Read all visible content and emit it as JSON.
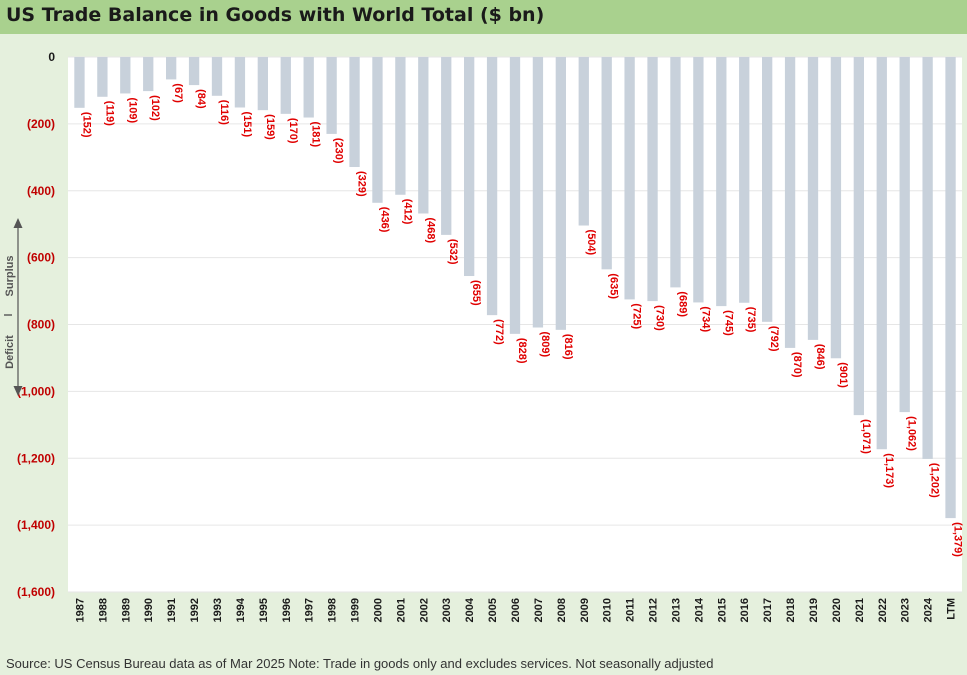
{
  "title": "US Trade Balance in Goods with World Total ($ bn)",
  "footer": "Source: US Census Bureau data as of Mar 2025 Note: Trade in goods only and excludes services. Not seasonally adjusted",
  "indicator": {
    "surplus_label": "Surplus",
    "deficit_label": "Deficit"
  },
  "colors": {
    "bar": "#c8d1db",
    "label_red": "#e00000",
    "grid": "#e6e6e6",
    "title_bg": "#a9d18e",
    "plot_bg": "#ffffff",
    "page_bg": "#e5f0dd"
  },
  "chart_data": {
    "type": "bar",
    "title": "US Trade Balance in Goods with World Total ($ bn)",
    "xlabel": "",
    "ylabel": "",
    "ylim": [
      -1600,
      0
    ],
    "yticks": [
      0,
      -200,
      -400,
      -600,
      -800,
      -1000,
      -1200,
      -1400,
      -1600
    ],
    "ytick_labels": [
      "0",
      "(200)",
      "(400)",
      "(600)",
      "(800)",
      "(1,000)",
      "(1,200)",
      "(1,400)",
      "(1,600)"
    ],
    "grid": true,
    "categories": [
      "1987",
      "1988",
      "1989",
      "1990",
      "1991",
      "1992",
      "1993",
      "1994",
      "1995",
      "1996",
      "1997",
      "1998",
      "1999",
      "2000",
      "2001",
      "2002",
      "2003",
      "2004",
      "2005",
      "2006",
      "2007",
      "2008",
      "2009",
      "2010",
      "2011",
      "2012",
      "2013",
      "2014",
      "2015",
      "2016",
      "2017",
      "2018",
      "2019",
      "2020",
      "2021",
      "2022",
      "2023",
      "2024",
      "LTM"
    ],
    "values": [
      -152,
      -119,
      -109,
      -102,
      -67,
      -84,
      -116,
      -151,
      -159,
      -170,
      -181,
      -230,
      -329,
      -436,
      -412,
      -468,
      -532,
      -655,
      -772,
      -828,
      -809,
      -816,
      -504,
      -635,
      -725,
      -730,
      -689,
      -734,
      -745,
      -735,
      -792,
      -870,
      -846,
      -901,
      -1071,
      -1173,
      -1062,
      -1202,
      -1379
    ],
    "data_labels": [
      "(152)",
      "(119)",
      "(109)",
      "(102)",
      "(67)",
      "(84)",
      "(116)",
      "(151)",
      "(159)",
      "(170)",
      "(181)",
      "(230)",
      "(329)",
      "(436)",
      "(412)",
      "(468)",
      "(532)",
      "(655)",
      "(772)",
      "(828)",
      "(809)",
      "(816)",
      "(504)",
      "(635)",
      "(725)",
      "(730)",
      "(689)",
      "(734)",
      "(745)",
      "(735)",
      "(792)",
      "(870)",
      "(846)",
      "(901)",
      "(1,071)",
      "(1,173)",
      "(1,062)",
      "(1,202)",
      "(1,379)"
    ]
  }
}
